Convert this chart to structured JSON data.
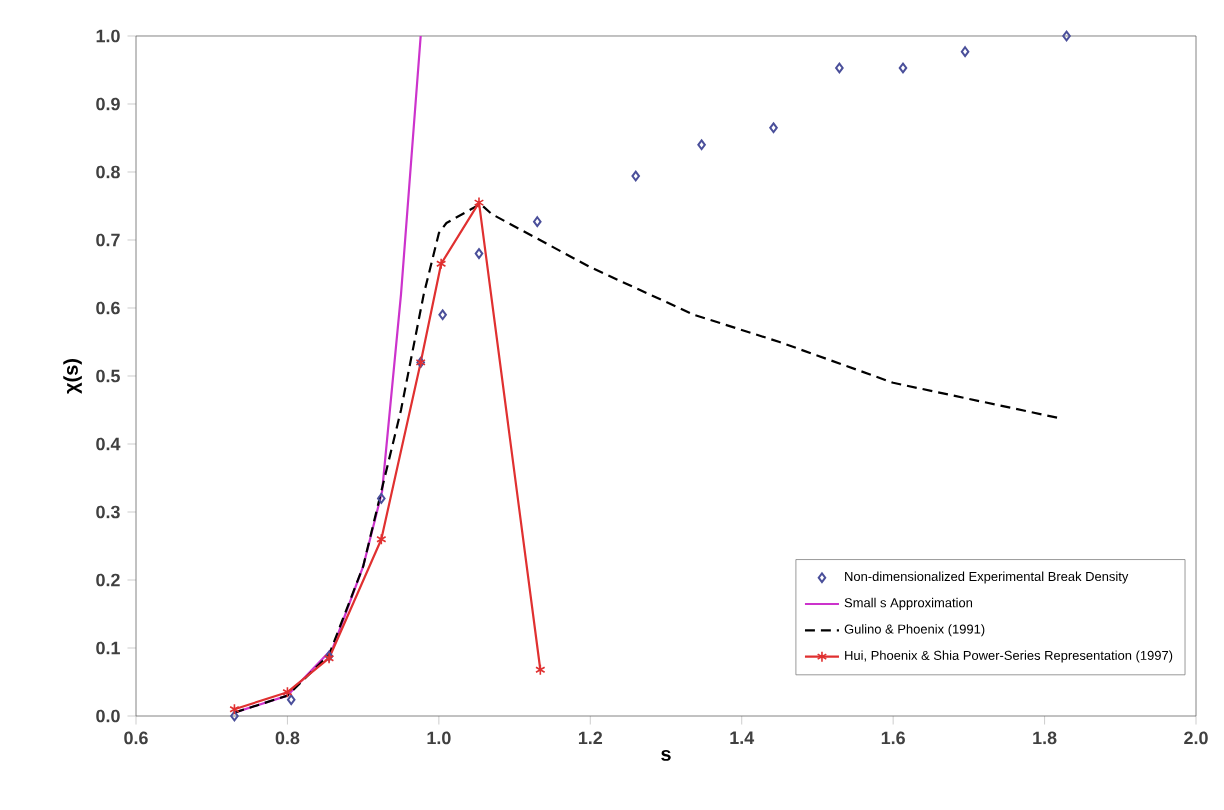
{
  "chart_data": {
    "type": "line",
    "xlabel": "s",
    "ylabel": "χ(s)",
    "xlim": [
      0.6,
      2.0
    ],
    "ylim": [
      0.0,
      1.0
    ],
    "xticks": [
      {
        "value": 0.6,
        "label": "0.6"
      },
      {
        "value": 0.8,
        "label": "0.8"
      },
      {
        "value": 1.0,
        "label": "1.0"
      },
      {
        "value": 1.2,
        "label": "1.2"
      },
      {
        "value": 1.4,
        "label": "1.4"
      },
      {
        "value": 1.6,
        "label": "1.6"
      },
      {
        "value": 1.8,
        "label": "1.8"
      },
      {
        "value": 2.0,
        "label": "2.0"
      }
    ],
    "yticks": [
      {
        "value": 0.0,
        "label": "0.0"
      },
      {
        "value": 0.1,
        "label": "0.1"
      },
      {
        "value": 0.2,
        "label": "0.2"
      },
      {
        "value": 0.3,
        "label": "0.3"
      },
      {
        "value": 0.4,
        "label": "0.4"
      },
      {
        "value": 0.5,
        "label": "0.5"
      },
      {
        "value": 0.6,
        "label": "0.6"
      },
      {
        "value": 0.7,
        "label": "0.7"
      },
      {
        "value": 0.8,
        "label": "0.8"
      },
      {
        "value": 0.9,
        "label": "0.9"
      },
      {
        "value": 1.0,
        "label": "1.0"
      }
    ],
    "grid": false,
    "legend": "bottom right",
    "series": [
      {
        "name": "Non-dimensionalized Experimental Break Density",
        "type": "scatter",
        "marker": "diamond",
        "color": "#4a4f9a",
        "x": [
          0.73,
          0.805,
          0.855,
          0.924,
          0.976,
          1.005,
          1.053,
          1.13,
          1.26,
          1.347,
          1.442,
          1.529,
          1.613,
          1.695,
          1.829
        ],
        "values": [
          0.0,
          0.024,
          0.088,
          0.32,
          0.52,
          0.59,
          0.68,
          0.727,
          0.794,
          0.84,
          0.865,
          0.953,
          0.953,
          0.977,
          1.0
        ]
      },
      {
        "name": "Small s Approximation",
        "marker": "none",
        "line_style": "solid",
        "color": "#cc33cc",
        "x": [
          0.73,
          0.8,
          0.86,
          0.9,
          0.925,
          0.95,
          0.976
        ],
        "values": [
          0.005,
          0.03,
          0.1,
          0.22,
          0.33,
          0.62,
          1.0
        ]
      },
      {
        "name": "Gulino & Phoenix (1991)",
        "marker": "none",
        "line_style": "dashed",
        "color": "#000000",
        "x": [
          0.73,
          0.8,
          0.855,
          0.9,
          0.95,
          0.98,
          1.0,
          1.01,
          1.055,
          1.07,
          1.2,
          1.337,
          1.45,
          1.6,
          1.824
        ],
        "values": [
          0.005,
          0.03,
          0.09,
          0.22,
          0.45,
          0.62,
          0.71,
          0.725,
          0.753,
          0.738,
          0.66,
          0.59,
          0.55,
          0.49,
          0.437
        ]
      },
      {
        "name": "Hui, Phoenix & Shia Power-Series Representation (1997)",
        "marker": "cross",
        "line_style": "solid",
        "color": "#e03030",
        "x": [
          0.73,
          0.8,
          0.855,
          0.924,
          0.976,
          1.003,
          1.053,
          1.134
        ],
        "values": [
          0.01,
          0.035,
          0.085,
          0.26,
          0.52,
          0.665,
          0.755,
          0.068
        ]
      }
    ]
  }
}
